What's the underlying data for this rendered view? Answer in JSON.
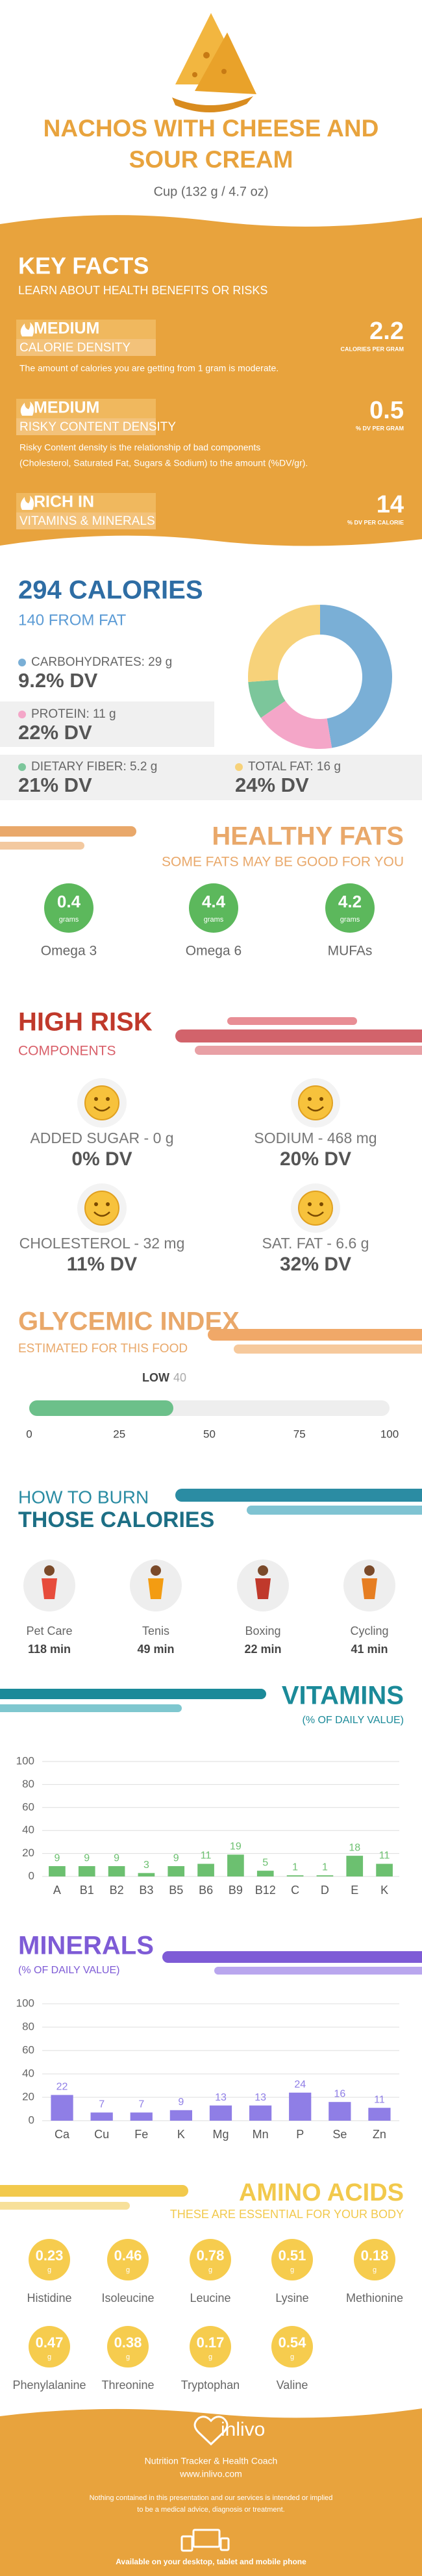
{
  "header": {
    "title_lines": [
      "NACHOS WITH CHEESE AND",
      "SOUR CREAM"
    ],
    "serving": "Cup (132 g / 4.7 oz)"
  },
  "key_facts": {
    "title": "KEY FACTS",
    "subtitle": "LEARN ABOUT HEALTH BENEFITS OR RISKS",
    "items": [
      {
        "level": "MEDIUM",
        "name": "CALORIE DENSITY",
        "text": [
          "The amount of calories you are getting from 1 gram is moderate."
        ],
        "value": "2.2",
        "unit": "CALORIES PER GRAM"
      },
      {
        "level": "MEDIUM",
        "name": "RISKY CONTENT DENSITY",
        "text": [
          "Risky Content density is the relationship of bad components",
          "(Cholesterol, Saturated Fat, Sugars & Sodium) to the amount (%DV/gr)."
        ],
        "value": "0.5",
        "unit": "% DV PER GRAM"
      },
      {
        "level": "RICH  IN",
        "name": "VITAMINS & MINERALS",
        "text": [],
        "value": "14",
        "unit": "% DV PER CALORIE"
      }
    ]
  },
  "calories": {
    "title": "294 CALORIES",
    "subtitle": "140 FROM FAT",
    "nutrients": [
      {
        "label": "CARBOHYDRATES: 29 g",
        "dv": "9.2% DV"
      },
      {
        "label": "PROTEIN: 11 g",
        "dv": "22% DV"
      },
      {
        "label": "DIETARY FIBER: 5.2 g",
        "dv": "21% DV"
      },
      {
        "label": "TOTAL FAT: 16 g",
        "dv": "24% DV"
      }
    ]
  },
  "healthy_fats": {
    "title": "HEALTHY FATS",
    "subtitle": "SOME FATS MAY BE GOOD FOR YOU",
    "items": [
      {
        "value": "0.4",
        "unit": "grams",
        "name": "Omega 3"
      },
      {
        "value": "4.4",
        "unit": "grams",
        "name": "Omega 6"
      },
      {
        "value": "4.2",
        "unit": "grams",
        "name": "MUFAs"
      }
    ]
  },
  "high_risk": {
    "title": "HIGH RISK",
    "subtitle": "COMPONENTS",
    "items": [
      {
        "label": "ADDED SUGAR - 0 g",
        "dv": "0% DV"
      },
      {
        "label": "SODIUM - 468 mg",
        "dv": "20% DV"
      },
      {
        "label": "CHOLESTEROL - 32 mg",
        "dv": "11% DV"
      },
      {
        "label": "SAT. FAT - 6.6 g",
        "dv": "32% DV"
      }
    ]
  },
  "burn": {
    "title_lines": [
      "HOW TO BURN",
      "THOSE CALORIES"
    ],
    "items": [
      {
        "name": "Pet Care",
        "time": "118 min"
      },
      {
        "name": "Tenis",
        "time": "49 min"
      },
      {
        "name": "Boxing",
        "time": "22 min"
      },
      {
        "name": "Cycling",
        "time": "41 min"
      }
    ]
  },
  "amino": {
    "title": "AMINO ACIDS",
    "subtitle": "THESE ARE ESSENTIAL FOR YOUR BODY",
    "unit": "g",
    "items": [
      {
        "value": "0.23",
        "name": "Histidine"
      },
      {
        "value": "0.46",
        "name": "Isoleucine"
      },
      {
        "value": "0.78",
        "name": "Leucine"
      },
      {
        "value": "0.51",
        "name": "Lysine"
      },
      {
        "value": "0.18",
        "name": "Methionine"
      },
      {
        "value": "0.47",
        "name": "Phenylalanine"
      },
      {
        "value": "0.38",
        "name": "Threonine"
      },
      {
        "value": "0.17",
        "name": "Tryptophan"
      },
      {
        "value": "0.54",
        "name": "Valine"
      }
    ]
  },
  "footer": {
    "brand": "inlivo",
    "tagline": "Nutrition Tracker & Health Coach",
    "url": "www.inlivo.com",
    "disclaimer": [
      "Nothing contained in this presentation and our services is intended or implied",
      "to be a medical advice, diagnosis or treatment."
    ],
    "available": "Available on your desktop, tablet and mobile phone"
  },
  "chart_data": [
    {
      "type": "donut",
      "values": [
        29,
        11,
        5.2,
        16
      ],
      "colors": [
        "#7aafd6",
        "#f4a6c8",
        "#7cc69b",
        "#f7d27a"
      ]
    },
    {
      "type": "progress",
      "title": "GLYCEMIC INDEX",
      "subtitle": "ESTIMATED FOR THIS FOOD",
      "value": 40,
      "value_label": "LOW",
      "xlim": [
        0,
        100
      ],
      "xticks": [
        0,
        25,
        50,
        75,
        100
      ],
      "color": "#6cc08a"
    },
    {
      "type": "bar",
      "title": "VITAMINS",
      "subtitle": "(% OF DAILY VALUE)",
      "categories": [
        "A",
        "B1",
        "B2",
        "B3",
        "B5",
        "B6",
        "B9",
        "B12",
        "C",
        "D",
        "E",
        "K"
      ],
      "values": [
        9,
        9,
        9,
        3,
        9,
        11,
        19,
        5,
        1,
        1,
        18,
        11
      ],
      "color": "#6cc070",
      "ylim": [
        0,
        100
      ],
      "yticks": [
        0,
        20,
        40,
        60,
        80,
        100
      ],
      "grid": true
    },
    {
      "type": "bar",
      "title": "MINERALS",
      "subtitle": "(% OF DAILY VALUE)",
      "categories": [
        "Ca",
        "Cu",
        "Fe",
        "K",
        "Mg",
        "Mn",
        "P",
        "Se",
        "Zn"
      ],
      "values": [
        22,
        7,
        7,
        9,
        13,
        13,
        24,
        16,
        11
      ],
      "color": "#8f7ee6",
      "ylim": [
        0,
        100
      ],
      "yticks": [
        0,
        20,
        40,
        60,
        80,
        100
      ],
      "grid": true
    }
  ]
}
